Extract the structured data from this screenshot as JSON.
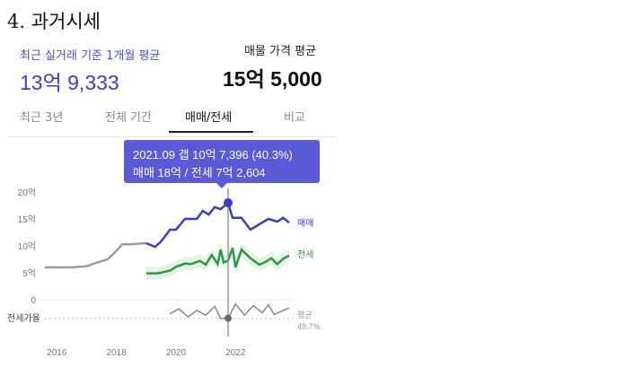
{
  "section_title": "4. 과거시세",
  "summary": {
    "recent_label": "최근 실거래 기준 1개월 평균",
    "recent_value": "13억 9,333",
    "avg_label": "매물 가격 평균",
    "avg_value": "15억 5,000"
  },
  "tabs": [
    {
      "label": "최근 3년",
      "active": false
    },
    {
      "label": "전체 기간",
      "active": false
    },
    {
      "label": "매매/전세",
      "active": true
    },
    {
      "label": "비교",
      "active": false
    }
  ],
  "tooltip": {
    "line1": "2021.09  갭 10억 7,396 (40.3%)",
    "line2": "매매 18억 / 전세 7억 2,604"
  },
  "colors": {
    "sale": "#3b3bd0",
    "jeonse": "#2e9a3e",
    "history": "#9a9a9a",
    "ratio": "#888888",
    "tooltip_bg": "#5a5ad8"
  },
  "chart_data": {
    "type": "line",
    "x_ticks": [
      "2016",
      "2018",
      "2020",
      "2022"
    ],
    "y_ticks": [
      "20억",
      "15억",
      "10억",
      "5억",
      "0"
    ],
    "ylim": [
      0,
      20
    ],
    "grid": false,
    "series": [
      {
        "name": "매매",
        "x": [
          2015.6,
          2016.5,
          2017.0,
          2017.3,
          2017.7,
          2017.9,
          2018.2,
          2018.5,
          2019.0,
          2019.3,
          2019.5,
          2019.8,
          2020.0,
          2020.3,
          2020.7,
          2020.9,
          2021.1,
          2021.3,
          2021.5,
          2021.6,
          2021.75,
          2021.9,
          2022.2,
          2022.5,
          2022.8,
          2023.1,
          2023.4,
          2023.6,
          2023.8
        ],
        "values": [
          6.0,
          6.0,
          6.2,
          6.8,
          7.5,
          8.5,
          10.3,
          10.3,
          10.5,
          9.8,
          10.8,
          13.0,
          13.0,
          15.0,
          15.0,
          16.5,
          15.8,
          17.2,
          16.8,
          17.3,
          18.0,
          15.2,
          15.2,
          13.0,
          14.0,
          15.0,
          14.5,
          15.2,
          14.3
        ]
      },
      {
        "name": "전세",
        "x": [
          2019.0,
          2019.4,
          2019.8,
          2020.0,
          2020.3,
          2020.5,
          2020.8,
          2021.0,
          2021.2,
          2021.4,
          2021.5,
          2021.6,
          2021.75,
          2021.9,
          2022.0,
          2022.2,
          2022.5,
          2022.8,
          2023.0,
          2023.2,
          2023.4,
          2023.6,
          2023.8
        ],
        "values": [
          4.9,
          4.9,
          5.4,
          6.1,
          6.7,
          6.6,
          7.2,
          6.5,
          8.3,
          6.6,
          9.3,
          6.9,
          7.26,
          9.6,
          6.0,
          9.3,
          7.7,
          6.5,
          7.0,
          7.7,
          6.6,
          7.6,
          8.2
        ]
      },
      {
        "name": "전세가율",
        "x": [
          2019.8,
          2020.1,
          2020.4,
          2020.7,
          2021.0,
          2021.3,
          2021.5,
          2021.75,
          2022.0,
          2022.3,
          2022.6,
          2022.9,
          2023.1,
          2023.3,
          2023.6,
          2023.8
        ],
        "values": [
          46,
          52,
          42,
          50,
          44,
          55,
          40,
          40.3,
          58,
          44,
          56,
          47,
          57,
          45,
          50,
          53
        ]
      }
    ],
    "ratio_label": "전세가율",
    "ratio_average": {
      "label": "평균",
      "value": "49.7%"
    },
    "highlight": {
      "x": 2021.75,
      "sale": 18.0,
      "jeonse": 7.26,
      "label": "2021.09"
    }
  }
}
